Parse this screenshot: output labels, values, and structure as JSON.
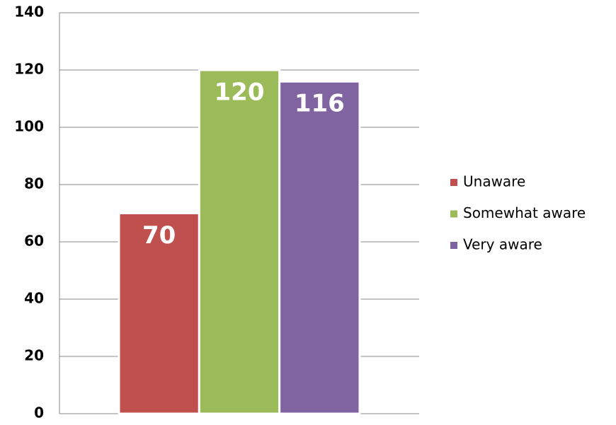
{
  "chart_data": {
    "type": "bar",
    "categories": [
      null
    ],
    "series": [
      {
        "name": "Unaware",
        "color": "#c0504d",
        "values": [
          70
        ]
      },
      {
        "name": "Somewhat aware",
        "color": "#9bbb59",
        "values": [
          120
        ]
      },
      {
        "name": "Very aware",
        "color": "#8064a2",
        "values": [
          116
        ]
      }
    ],
    "ylim": [
      0,
      140
    ],
    "yticks": [
      0,
      20,
      40,
      60,
      80,
      100,
      120,
      140
    ],
    "grid": true,
    "legend": "right"
  }
}
